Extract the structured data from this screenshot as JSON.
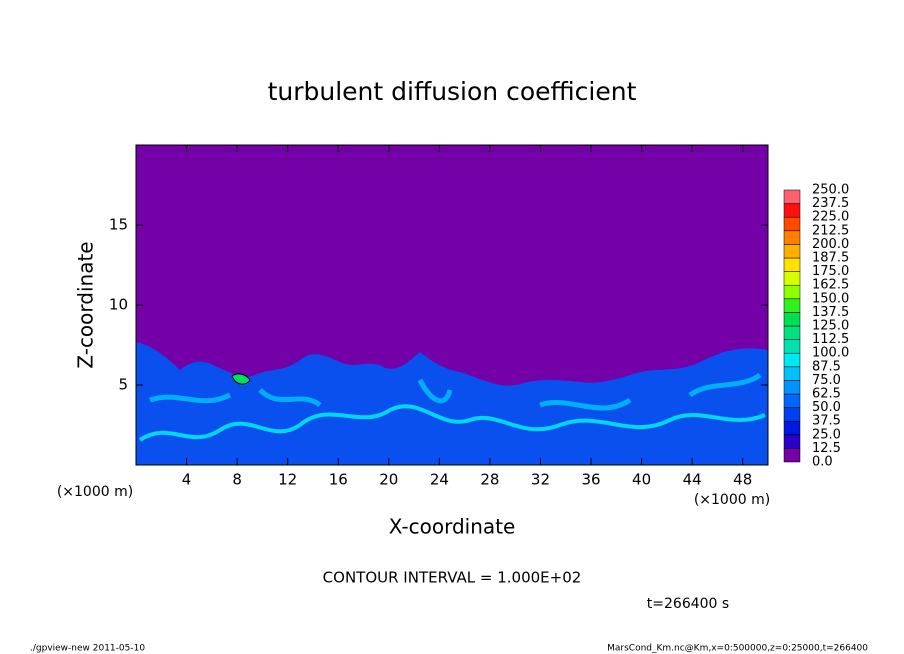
{
  "chart_data": {
    "type": "contour",
    "title": "turbulent diffusion coefficient",
    "x_label": "X-coordinate",
    "y_label": "Z-coordinate",
    "x_unit": "(×1000 m)",
    "y_unit": "(×1000 m)",
    "xlim": [
      0,
      50
    ],
    "ylim": [
      0,
      20
    ],
    "xticks": [
      4,
      8,
      12,
      16,
      20,
      24,
      28,
      32,
      36,
      40,
      44,
      48
    ],
    "yticks": [
      5,
      10,
      15
    ],
    "levels": [
      {
        "value": 0,
        "label": "0.0"
      },
      {
        "value": 12.5,
        "label": "12.5"
      },
      {
        "value": 25,
        "label": "25.0"
      },
      {
        "value": 37.5,
        "label": "37.5"
      },
      {
        "value": 50,
        "label": "50.0"
      },
      {
        "value": 62.5,
        "label": "62.5"
      },
      {
        "value": 75,
        "label": "75.0"
      },
      {
        "value": 87.5,
        "label": "87.5"
      },
      {
        "value": 100,
        "label": "100.0"
      },
      {
        "value": 112.5,
        "label": "112.5"
      },
      {
        "value": 125,
        "label": "125.0"
      },
      {
        "value": 137.5,
        "label": "137.5"
      },
      {
        "value": 150,
        "label": "150.0"
      },
      {
        "value": 162.5,
        "label": "162.5"
      },
      {
        "value": 175,
        "label": "175.0"
      },
      {
        "value": 187.5,
        "label": "187.5"
      },
      {
        "value": 200,
        "label": "200.0"
      },
      {
        "value": 212.5,
        "label": "212.5"
      },
      {
        "value": 225,
        "label": "225.0"
      },
      {
        "value": 237.5,
        "label": "237.5"
      },
      {
        "value": 250,
        "label": "250.0"
      }
    ],
    "colors": [
      "#7400a8",
      "#2a00c8",
      "#0018e0",
      "#0040f0",
      "#0068ff",
      "#0094ff",
      "#00c0ff",
      "#00e8f0",
      "#00e0b0",
      "#00e080",
      "#00e050",
      "#30f020",
      "#90ff00",
      "#d8ff00",
      "#ffe000",
      "#ffb000",
      "#ff8000",
      "#ff4800",
      "#ff1010",
      "#ff6070"
    ],
    "contour_interval": "CONTOUR INTERVAL = 1.000E+02",
    "time_label": "t=266400 s",
    "footer_left": "./gpview-new  2011-05-10",
    "footer_right": "MarsCond_Km.nc@Km,x=0:500000,z=0:25000,t=266400"
  }
}
